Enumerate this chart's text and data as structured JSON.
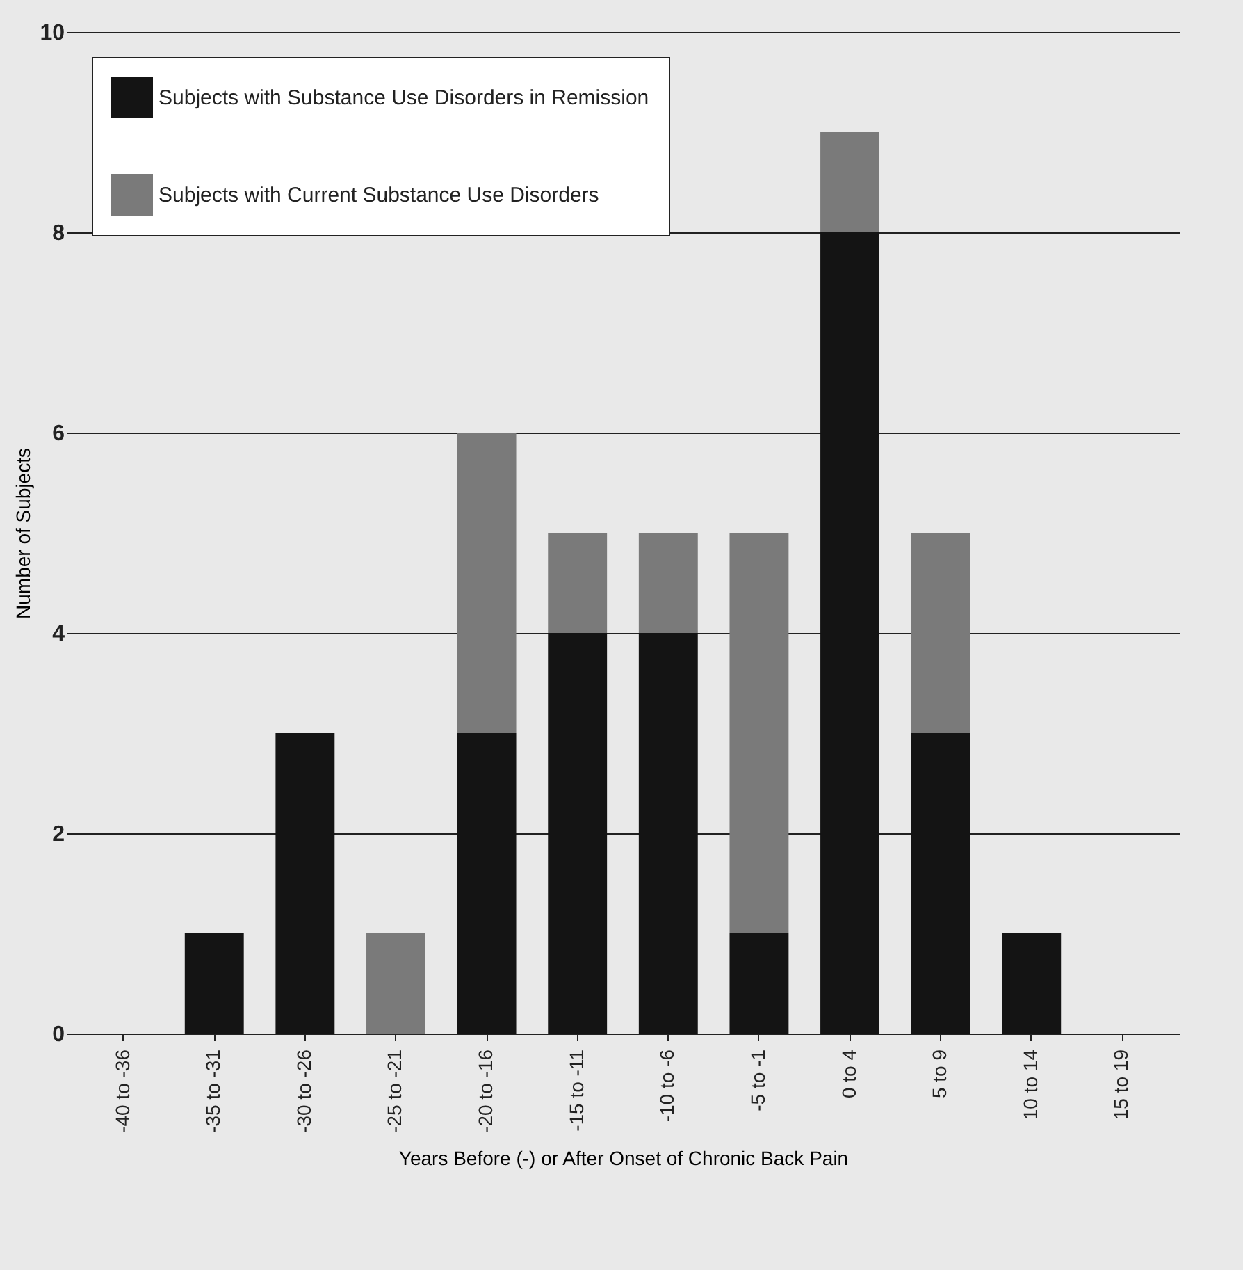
{
  "chart_data": {
    "type": "bar",
    "stacked": true,
    "xlabel": "Years Before (-) or After Onset of Chronic Back Pain",
    "ylabel": "Number of Subjects",
    "categories": [
      "-40 to -36",
      "-35 to -31",
      "-30 to -26",
      "-25 to -21",
      "-20 to -16",
      "-15 to -11",
      "-10 to -6",
      "-5 to -1",
      "0 to 4",
      "5 to 9",
      "10 to 14",
      "15 to 19"
    ],
    "series": [
      {
        "name": "Subjects with Substance Use Disorders in Remission",
        "color": "#141414",
        "values": [
          0,
          1,
          3,
          0,
          3,
          4,
          4,
          1,
          8,
          3,
          1,
          0
        ]
      },
      {
        "name": "Subjects with Current Substance Use Disorders",
        "color": "#7a7a7a",
        "values": [
          0,
          0,
          0,
          1,
          3,
          1,
          1,
          4,
          1,
          2,
          0,
          0
        ]
      }
    ],
    "ylim": [
      0,
      10
    ],
    "yticks": [
      0,
      2,
      4,
      6,
      8,
      10
    ],
    "grid": "y",
    "legend": "top left"
  }
}
